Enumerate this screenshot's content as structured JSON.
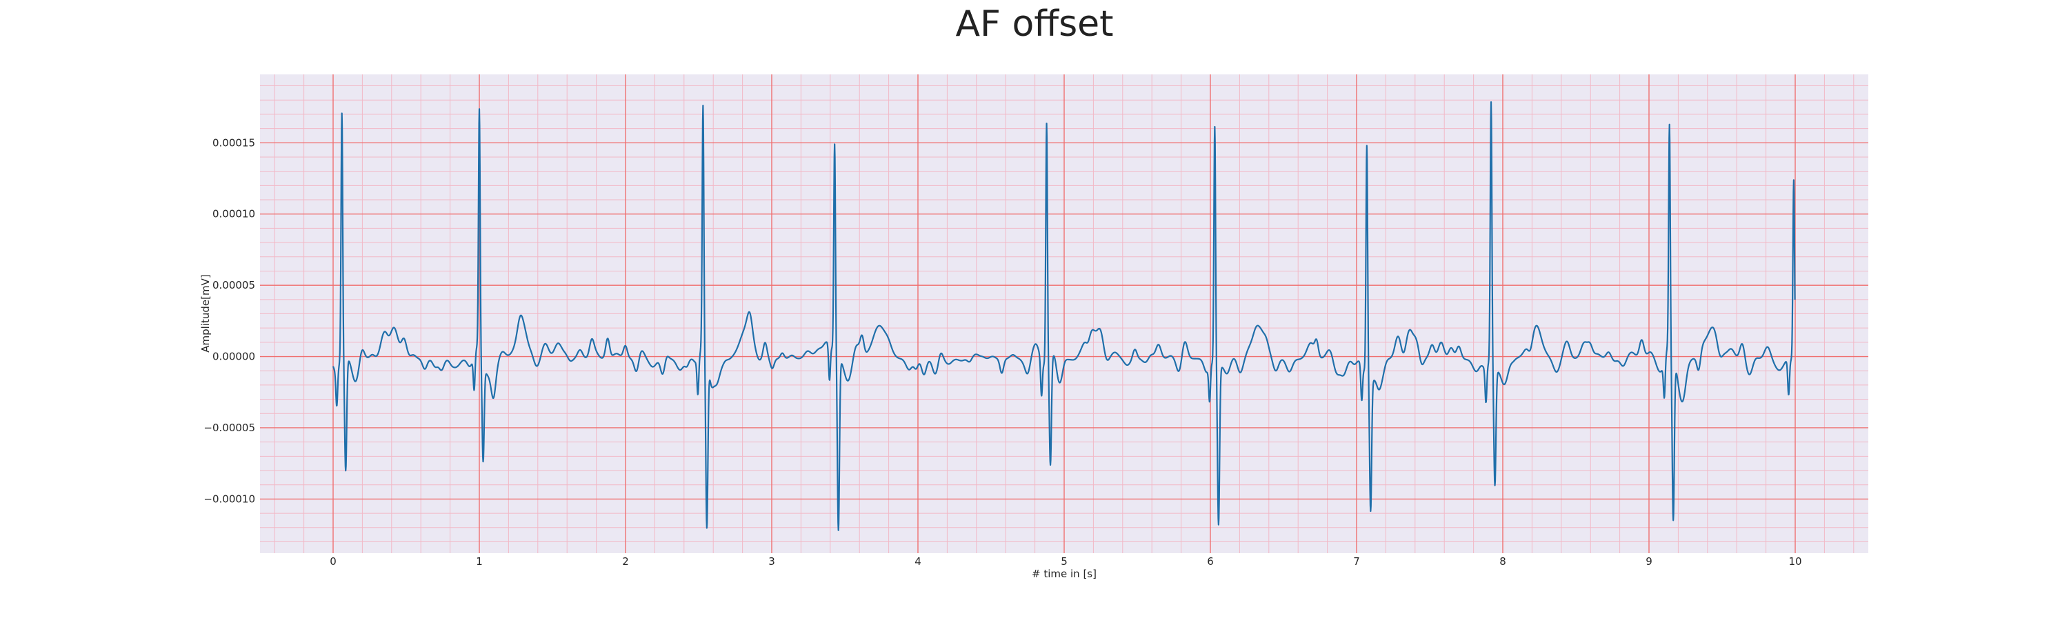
{
  "chart_data": {
    "type": "line",
    "title": "AF offset",
    "xlabel": "# time in [s]",
    "ylabel": "Amplitude[mV]",
    "xlim": [
      -0.5,
      10.5
    ],
    "ylim": [
      -0.000138,
      0.000198
    ],
    "x_ticks": [
      0,
      1,
      2,
      3,
      4,
      5,
      6,
      7,
      8,
      9,
      10
    ],
    "x_tick_labels": [
      "0",
      "1",
      "2",
      "3",
      "4",
      "5",
      "6",
      "7",
      "8",
      "9",
      "10"
    ],
    "y_ticks": [
      -0.0001,
      -5e-05,
      0.0,
      5e-05,
      0.0001,
      0.00015
    ],
    "y_tick_labels": [
      "−0.00010",
      "−0.00005",
      "0.00000",
      "0.00005",
      "0.00010",
      "0.00015"
    ],
    "grid": true,
    "minor_grid": true,
    "background_color": "#ebe8f3",
    "major_grid_color": "#f07070",
    "minor_grid_color": "#f2b8c6",
    "line_color": "#1f6faa",
    "beats": [
      {
        "t": 0.06,
        "peak": 0.000172,
        "trough": -8e-05
      },
      {
        "t": 1.0,
        "peak": 0.00017,
        "trough": -7e-05
      },
      {
        "t": 2.53,
        "peak": 0.000169,
        "trough": -0.000119
      },
      {
        "t": 3.43,
        "peak": 0.000143,
        "trough": -0.000124
      },
      {
        "t": 4.88,
        "peak": 0.000168,
        "trough": -7.5e-05
      },
      {
        "t": 6.03,
        "peak": 0.000168,
        "trough": -0.000112
      },
      {
        "t": 7.07,
        "peak": 0.000159,
        "trough": -9.5e-05
      },
      {
        "t": 7.92,
        "peak": 0.000183,
        "trough": -8.2e-05
      },
      {
        "t": 9.14,
        "peak": 0.000161,
        "trough": -0.000112
      },
      {
        "t": 9.99,
        "peak": 0.000127,
        "trough": -3e-05
      }
    ]
  }
}
